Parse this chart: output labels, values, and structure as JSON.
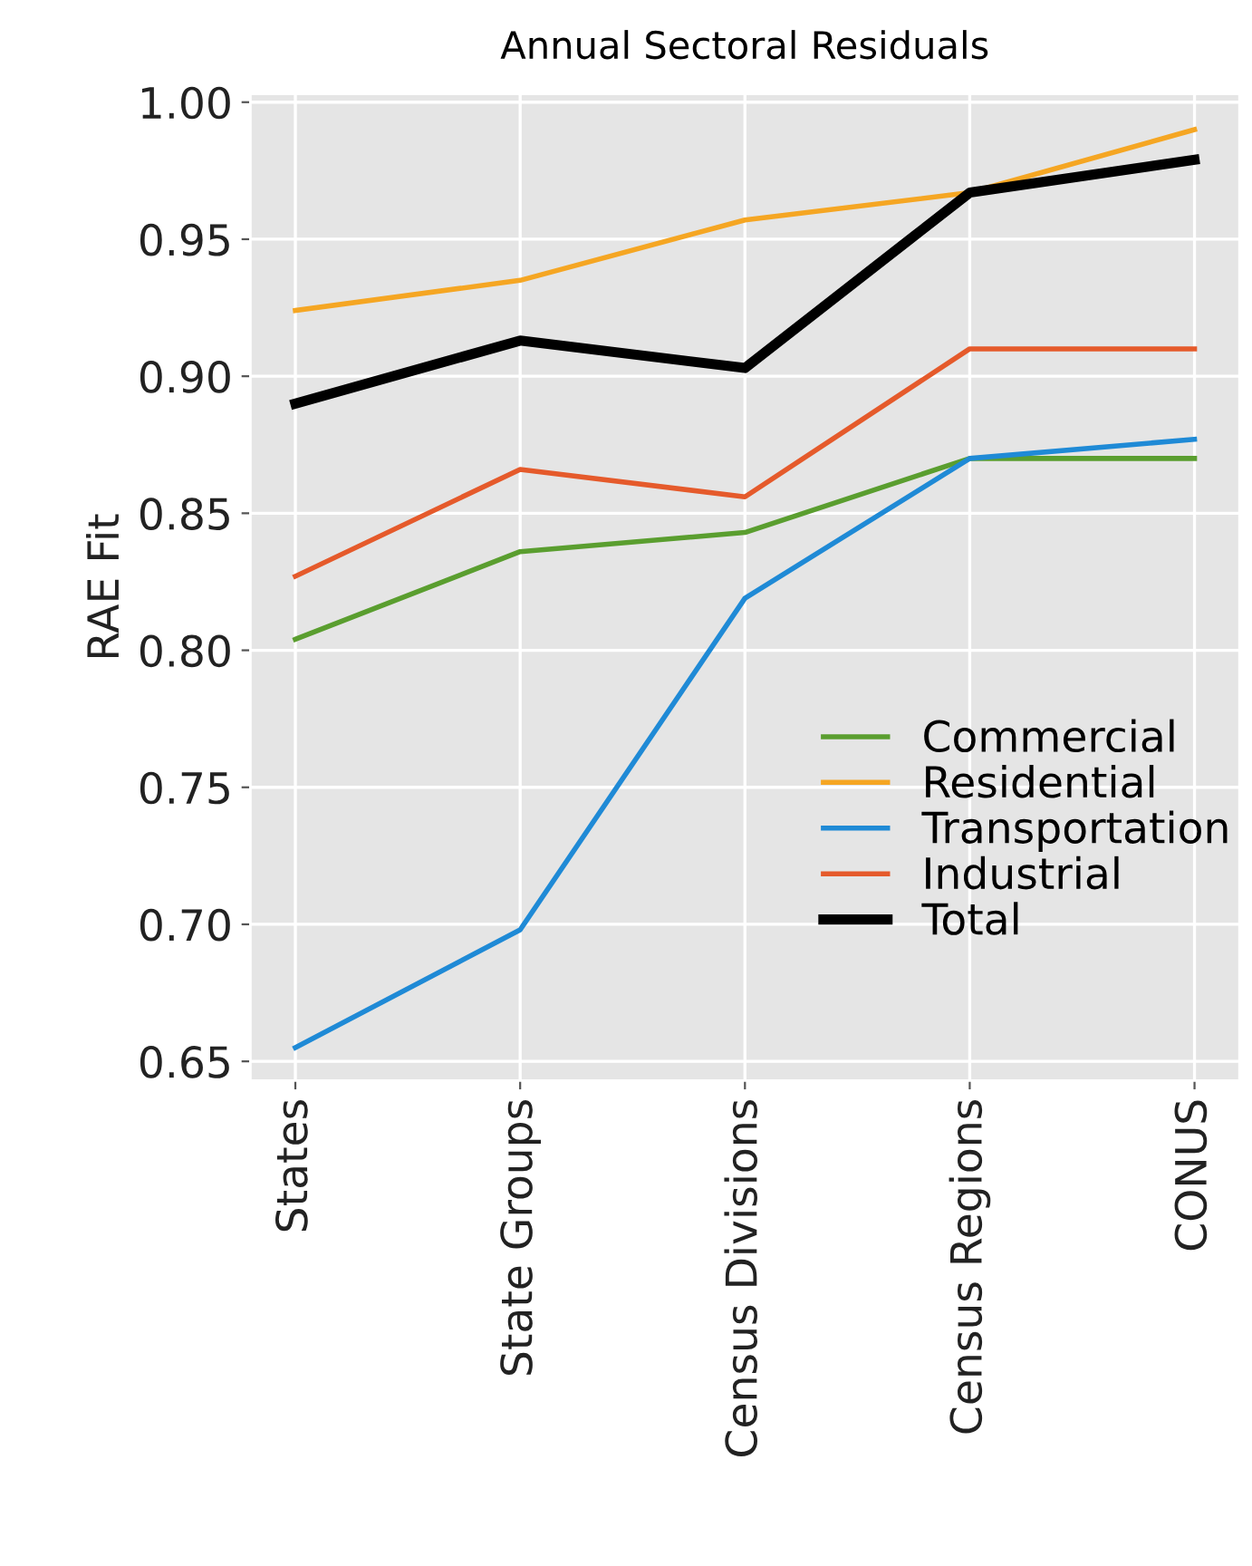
{
  "chart_data": {
    "type": "line",
    "title": "Annual Sectoral Residuals",
    "ylabel": "RAE Fit",
    "categories": [
      "States",
      "State Groups",
      "Census Divisions",
      "Census Regions",
      "CONUS"
    ],
    "series": [
      {
        "name": "Commercial",
        "color": "#5a9e2f",
        "values": [
          0.804,
          0.836,
          0.843,
          0.87,
          0.87
        ]
      },
      {
        "name": "Residential",
        "color": "#f5a623",
        "values": [
          0.924,
          0.935,
          0.957,
          0.967,
          0.99
        ]
      },
      {
        "name": "Transportation",
        "color": "#1f8ad6",
        "values": [
          0.655,
          0.698,
          0.819,
          0.87,
          0.877
        ]
      },
      {
        "name": "Industrial",
        "color": "#e55a2b",
        "values": [
          0.827,
          0.866,
          0.856,
          0.91,
          0.91
        ]
      },
      {
        "name": "Total",
        "color": "#000000",
        "values": [
          0.89,
          0.913,
          0.903,
          0.967,
          0.979
        ]
      }
    ],
    "ylim": [
      0.643,
      1.003
    ],
    "yticks": [
      {
        "value": 0.65,
        "label": "0.65"
      },
      {
        "value": 0.7,
        "label": "0.70"
      },
      {
        "value": 0.75,
        "label": "0.75"
      },
      {
        "value": 0.8,
        "label": "0.80"
      },
      {
        "value": 0.85,
        "label": "0.85"
      },
      {
        "value": 0.9,
        "label": "0.90"
      },
      {
        "value": 0.95,
        "label": "0.95"
      },
      {
        "value": 1.0,
        "label": "1.00"
      }
    ],
    "grid": true,
    "legend": "lower right",
    "marker": "none",
    "line_style": "solid"
  }
}
